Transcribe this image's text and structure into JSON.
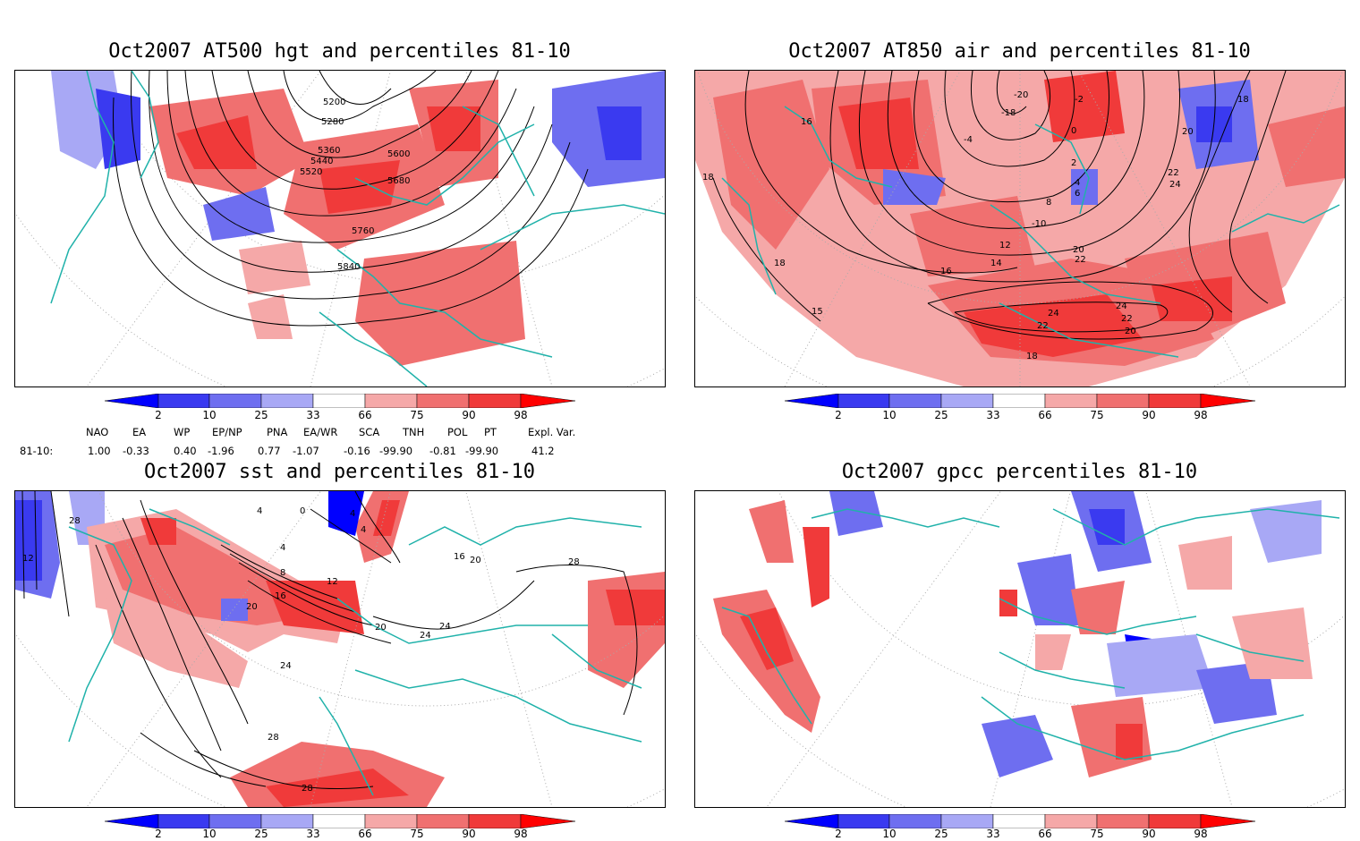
{
  "panels": {
    "p1": {
      "title": "Oct2007 AT500 hgt and percentiles 81-10",
      "contour_labels": [
        "5200",
        "5280",
        "5360",
        "5440",
        "5520",
        "5600",
        "5680",
        "5760",
        "5840"
      ]
    },
    "p2": {
      "title": "Oct2007 AT850 air and percentiles 81-10",
      "contour_labels": [
        "-2",
        "-4",
        "-18",
        "-20",
        "0",
        "2",
        "4",
        "6",
        "8",
        "-10",
        "12",
        "14",
        "16",
        "16",
        "18",
        "18",
        "18",
        "15",
        "20",
        "20",
        "22",
        "22",
        "22",
        "24",
        "24",
        "24",
        "22",
        "20",
        "18"
      ]
    },
    "p3": {
      "title": "Oct2007 sst and percentiles 81-10",
      "contour_labels": [
        "28",
        "12",
        "4",
        "0",
        "4",
        "4",
        "4",
        "8",
        "12",
        "16",
        "16",
        "20",
        "20",
        "24",
        "24",
        "24",
        "28",
        "28",
        "20",
        "28"
      ]
    },
    "p4": {
      "title": "Oct2007 gpcc percentiles 81-10"
    }
  },
  "colorbar": {
    "labels": [
      "2",
      "10",
      "25",
      "33",
      "66",
      "75",
      "90",
      "98"
    ],
    "colors": {
      "dark_blue": "#0000ff",
      "blue": "#3a3af0",
      "mid_blue": "#6e6ef0",
      "light_blue": "#a8a8f5",
      "light_red": "#f5a8a8",
      "mid_red": "#f07070",
      "red": "#f03a3a",
      "dark_red": "#ff0000"
    }
  },
  "teleconnections": {
    "headers": [
      "NAO",
      "EA",
      "WP",
      "EP/NP",
      "PNA",
      "EA/WR",
      "SCA",
      "TNH",
      "POL",
      "PT",
      "Expl. Var."
    ],
    "row_label": "81-10:",
    "values": [
      "1.00",
      "-0.33",
      "0.40",
      "-1.96",
      "0.77",
      "-1.07",
      "-0.16",
      "-99.90",
      "-0.81",
      "-99.90",
      "41.2"
    ]
  },
  "map_colors": {
    "coast": "#20b2aa",
    "contour": "#000000",
    "grid": "#aaaaaa"
  }
}
